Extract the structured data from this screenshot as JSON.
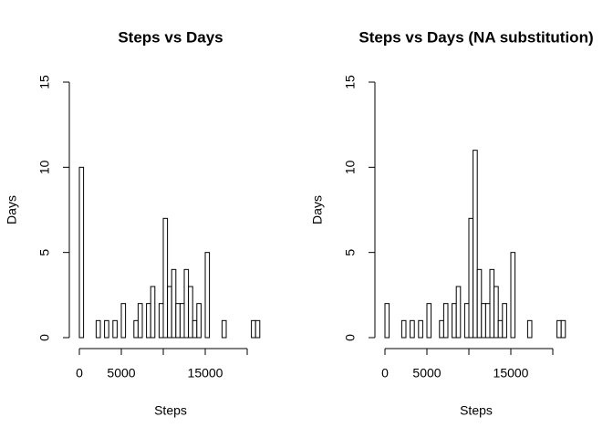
{
  "chart_data": [
    {
      "type": "histogram",
      "title": "Steps vs Days",
      "xlabel": "Steps",
      "ylabel": "Days",
      "bins": [
        0,
        500,
        1000,
        1500,
        2000,
        2500,
        3000,
        3500,
        4000,
        4500,
        5000,
        5500,
        6000,
        6500,
        7000,
        7500,
        8000,
        8500,
        9000,
        9500,
        10000,
        10500,
        11000,
        11500,
        12000,
        12500,
        13000,
        13500,
        14000,
        14500,
        15000,
        15500,
        16000,
        16500,
        17000,
        17500,
        18000,
        18500,
        19000,
        19500,
        20000,
        20500,
        21000,
        21500
      ],
      "counts": [
        10,
        0,
        0,
        0,
        1,
        0,
        1,
        0,
        1,
        0,
        2,
        0,
        0,
        1,
        2,
        0,
        2,
        3,
        0,
        2,
        7,
        3,
        4,
        2,
        2,
        4,
        3,
        1,
        2,
        0,
        5,
        0,
        0,
        0,
        1,
        0,
        0,
        0,
        0,
        0,
        0,
        1,
        1
      ],
      "xlim": [
        0,
        21500
      ],
      "xticks": [
        0,
        5000,
        {
          "value": 10000,
          "label": null
        },
        15000,
        {
          "value": 20000,
          "label": null
        }
      ],
      "ylim": [
        0,
        15
      ],
      "yticks": [
        0,
        5,
        10,
        15
      ],
      "color": "#ffffff"
    },
    {
      "type": "histogram",
      "title": "Steps vs Days (NA substitution)",
      "xlabel": "Steps",
      "ylabel": "Days",
      "bins": [
        0,
        500,
        1000,
        1500,
        2000,
        2500,
        3000,
        3500,
        4000,
        4500,
        5000,
        5500,
        6000,
        6500,
        7000,
        7500,
        8000,
        8500,
        9000,
        9500,
        10000,
        10500,
        11000,
        11500,
        12000,
        12500,
        13000,
        13500,
        14000,
        14500,
        15000,
        15500,
        16000,
        16500,
        17000,
        17500,
        18000,
        18500,
        19000,
        19500,
        20000,
        20500,
        21000,
        21500
      ],
      "counts": [
        2,
        0,
        0,
        0,
        1,
        0,
        1,
        0,
        1,
        0,
        2,
        0,
        0,
        1,
        2,
        0,
        2,
        3,
        0,
        2,
        7,
        11,
        4,
        2,
        2,
        4,
        3,
        1,
        2,
        0,
        5,
        0,
        0,
        0,
        1,
        0,
        0,
        0,
        0,
        0,
        0,
        1,
        1
      ],
      "xlim": [
        0,
        21500
      ],
      "xticks": [
        0,
        5000,
        {
          "value": 10000,
          "label": null
        },
        15000,
        {
          "value": 20000,
          "label": null
        }
      ],
      "ylim": [
        0,
        15
      ],
      "yticks": [
        0,
        5,
        10,
        15
      ],
      "color": "#ffffff"
    }
  ]
}
